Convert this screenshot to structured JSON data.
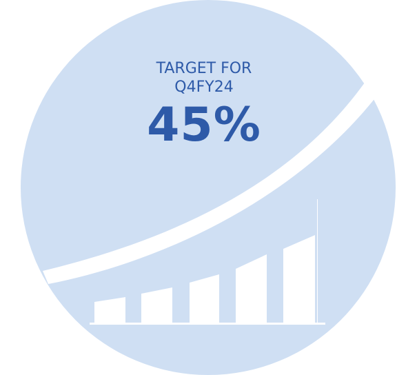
{
  "colors": {
    "circle": "#cfdff3",
    "background": "#ffffff",
    "text": "#2e5aa8"
  },
  "icons": {
    "arrow": "trend-arrow-icon",
    "bars": "bar-chart-icon"
  },
  "target": {
    "line1": "TARGET FOR",
    "line2": "Q4FY24",
    "value": "45%"
  }
}
